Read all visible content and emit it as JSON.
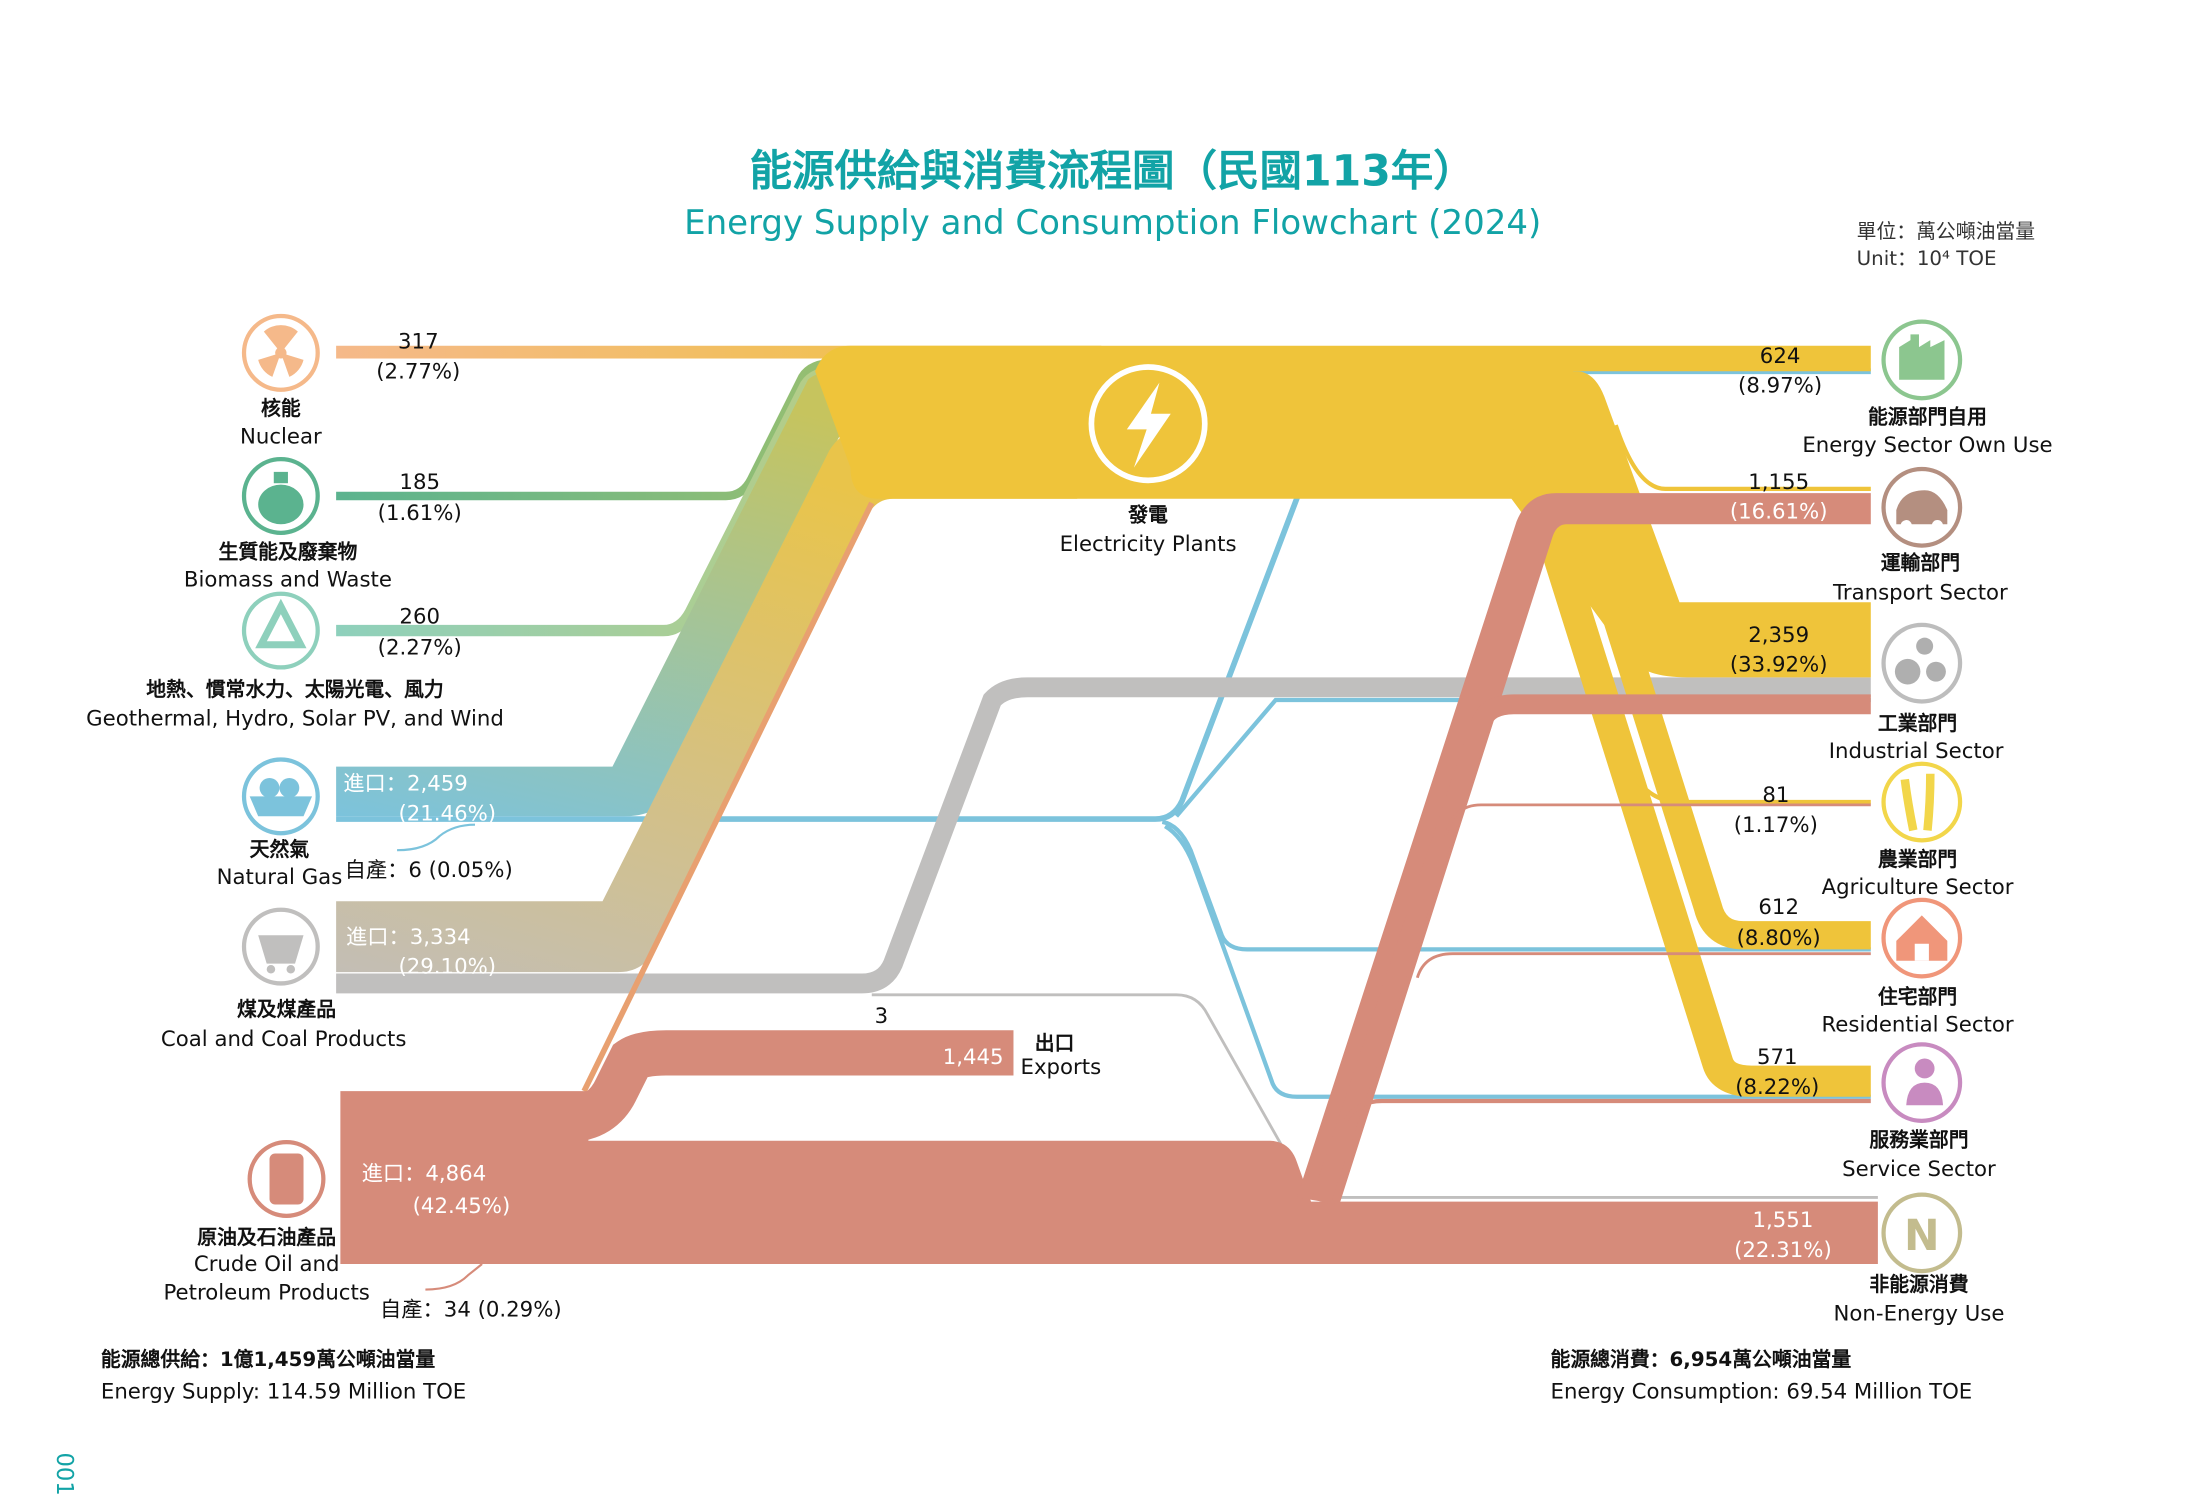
{
  "title": {
    "zh": "能源供給與消費流程圖（民國113年）",
    "en": "Energy Supply and Consumption Flowchart (2024)"
  },
  "unit": {
    "zh": "單位：萬公噸油當量",
    "en": "Unit：10⁴ TOE"
  },
  "colors": {
    "title": "#12A3A6",
    "electricity": "#EFC43A",
    "oil": "#D68B7A",
    "coal": "#C0BFBE",
    "gas": "#7CC3DC",
    "nuclear": "#F5B98A",
    "biomass": "#5BB38F",
    "renewable": "#8ED0BC"
  },
  "sources": {
    "nuclear": {
      "zh": "核能",
      "en": "Nuclear",
      "value": "317",
      "pct": "(2.77%)",
      "icon": "radiation-icon"
    },
    "biomass": {
      "zh": "生質能及廢棄物",
      "en": "Biomass and Waste",
      "value": "185",
      "pct": "(1.61%)",
      "icon": "biomass-bag-icon"
    },
    "renewable": {
      "zh": "地熱、慣常水力、太陽光電、風力",
      "en": "Geothermal, Hydro, Solar PV, and Wind",
      "value": "260",
      "pct": "(2.27%)",
      "icon": "recycle-leaf-icon"
    },
    "gas": {
      "zh": "天然氣",
      "en": "Natural Gas",
      "import": "進口：2,459",
      "import_pct": "(21.46%)",
      "domestic": "自產：6 (0.05%)",
      "icon": "lng-ship-icon"
    },
    "coal": {
      "zh": "煤及煤產品",
      "en": "Coal and Coal Products",
      "import": "進口：3,334",
      "import_pct": "(29.10%)",
      "icon": "mine-cart-icon"
    },
    "oil": {
      "zh": "原油及石油產品",
      "en1": "Crude Oil and",
      "en2": "Petroleum Products",
      "import": "進口：4,864",
      "import_pct": "(42.45%)",
      "domestic": "自產：34 (0.29%)",
      "icon": "oil-barrel-icon"
    }
  },
  "electricity": {
    "zh": "發電",
    "en": "Electricity Plants",
    "icon": "lightning-icon"
  },
  "exports": {
    "zh": "出口",
    "en": "Exports",
    "value": "1,445",
    "coal_value": "3"
  },
  "sectors": {
    "own_use": {
      "zh": "能源部門自用",
      "en": "Energy Sector Own Use",
      "value": "624",
      "pct": "(8.97%)",
      "icon": "factory-icon"
    },
    "transport": {
      "zh": "運輸部門",
      "en": "Transport Sector",
      "value": "1,155",
      "pct": "(16.61%)",
      "icon": "car-icon"
    },
    "industrial": {
      "zh": "工業部門",
      "en": "Industrial Sector",
      "value": "2,359",
      "pct": "(33.92%)",
      "icon": "gears-icon"
    },
    "agriculture": {
      "zh": "農業部門",
      "en": "Agriculture Sector",
      "value": "81",
      "pct": "(1.17%)",
      "icon": "wheat-icon"
    },
    "residential": {
      "zh": "住宅部門",
      "en": "Residential Sector",
      "value": "612",
      "pct": "(8.80%)",
      "icon": "house-icon"
    },
    "service": {
      "zh": "服務業部門",
      "en": "Service Sector",
      "value": "571",
      "pct": "(8.22%)",
      "icon": "service-person-icon"
    },
    "non_energy": {
      "zh": "非能源消費",
      "en": "Non-Energy Use",
      "value": "1,551",
      "pct": "(22.31%)",
      "icon": "non-energy-n-icon"
    }
  },
  "totals": {
    "supply_zh": "能源總供給：1億1,459萬公噸油當量",
    "supply_en": "Energy Supply: 114.59 Million TOE",
    "consumption_zh": "能源總消費：6,954萬公噸油當量",
    "consumption_en": "Energy  Consumption: 69.54 Million TOE"
  },
  "page_number": "001"
}
